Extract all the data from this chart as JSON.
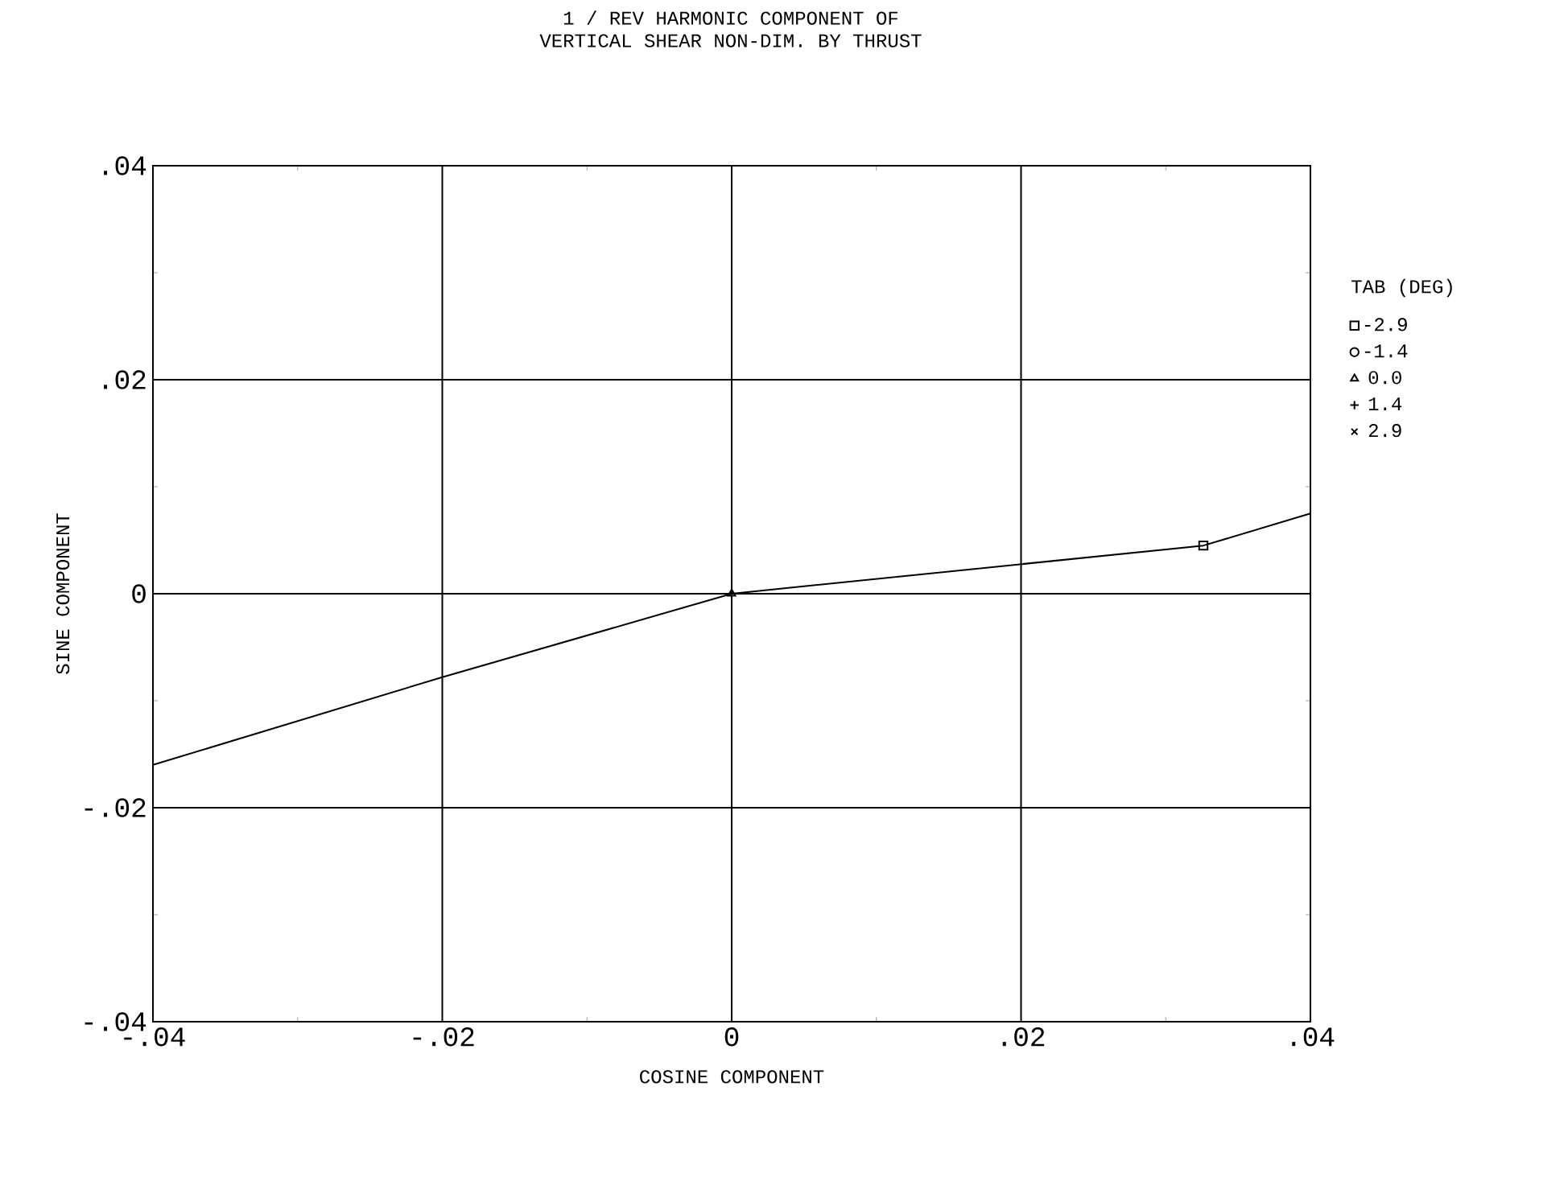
{
  "chart_data": {
    "type": "scatter",
    "title": "1 / REV HARMONIC COMPONENT OF",
    "subtitle": "VERTICAL SHEAR NON-DIM. BY THRUST",
    "xlabel": "COSINE COMPONENT",
    "ylabel": "SINE COMPONENT",
    "legend_title": "TAB (DEG)",
    "legend": "right",
    "grid": true,
    "xlim": [
      -0.04,
      0.04
    ],
    "ylim": [
      -0.04,
      0.04
    ],
    "xticks": [
      {
        "value": -0.04,
        "label": "-.04"
      },
      {
        "value": -0.02,
        "label": "-.02"
      },
      0,
      {
        "value": 0.02,
        "label": ".02"
      },
      {
        "value": 0.04,
        "label": ".04"
      }
    ],
    "yticks": [
      {
        "value": -0.04,
        "label": "-.04"
      },
      {
        "value": -0.02,
        "label": "-.02"
      },
      0,
      {
        "value": 0.02,
        "label": ".02"
      },
      {
        "value": 0.04,
        "label": ".04"
      }
    ],
    "series": [
      {
        "type": "line",
        "color": "#000000",
        "marker": "none",
        "line_style": "solid",
        "x": [
          -0.04,
          -0.02,
          0,
          0.0326,
          0.04
        ],
        "values": [
          -0.016,
          -0.0078,
          0,
          0.0045,
          0.0075
        ]
      },
      {
        "name": "-2.9",
        "color": "#000000",
        "marker": "square",
        "x": [
          0.0326
        ],
        "values": [
          0.0045
        ]
      },
      {
        "name": "-1.4",
        "color": "#000000",
        "marker": "circle"
      },
      {
        "name": "0.0",
        "color": "#000000",
        "marker": "triangle",
        "x": [
          0
        ],
        "values": [
          0
        ]
      },
      {
        "name": "1.4",
        "color": "#000000",
        "marker": "plus"
      },
      {
        "name": "2.9",
        "color": "#000000",
        "marker": "cross"
      }
    ]
  }
}
